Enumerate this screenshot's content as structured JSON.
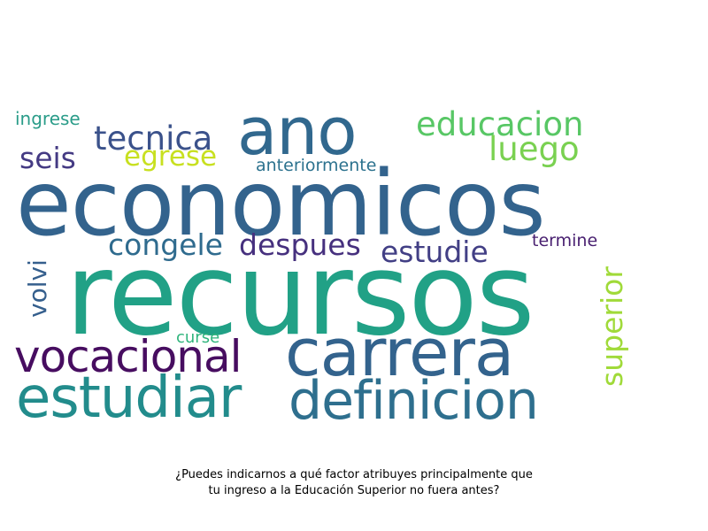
{
  "words": [
    {
      "text": "economicos",
      "color": "#33638d"
    },
    {
      "text": "recursos",
      "color": "#21a186"
    },
    {
      "text": "ano",
      "color": "#31688e"
    },
    {
      "text": "carrera",
      "color": "#33638d"
    },
    {
      "text": "estudiar",
      "color": "#228c8c"
    },
    {
      "text": "definicion",
      "color": "#2e6f8e"
    },
    {
      "text": "vocacional",
      "color": "#470d60"
    },
    {
      "text": "educacion",
      "color": "#58c765"
    },
    {
      "text": "tecnica",
      "color": "#3b528b"
    },
    {
      "text": "luego",
      "color": "#7ad151"
    },
    {
      "text": "seis",
      "color": "#443a83"
    },
    {
      "text": "egrese",
      "color": "#c8e020"
    },
    {
      "text": "anteriormente",
      "color": "#2c728e"
    },
    {
      "text": "ingrese",
      "color": "#2a9c89"
    },
    {
      "text": "congele",
      "color": "#2f6b8e"
    },
    {
      "text": "despues",
      "color": "#46307e"
    },
    {
      "text": "estudie",
      "color": "#423f85"
    },
    {
      "text": "termine",
      "color": "#481f70"
    },
    {
      "text": "volvi",
      "color": "#355f8d"
    },
    {
      "text": "superior",
      "color": "#a0da39"
    },
    {
      "text": "curse",
      "color": "#2fb47c"
    }
  ],
  "caption": {
    "line1": "¿Puedes indicarnos a qué factor atribuyes principalmente que",
    "line2": "tu ingreso a la Educación Superior no fuera antes?"
  }
}
